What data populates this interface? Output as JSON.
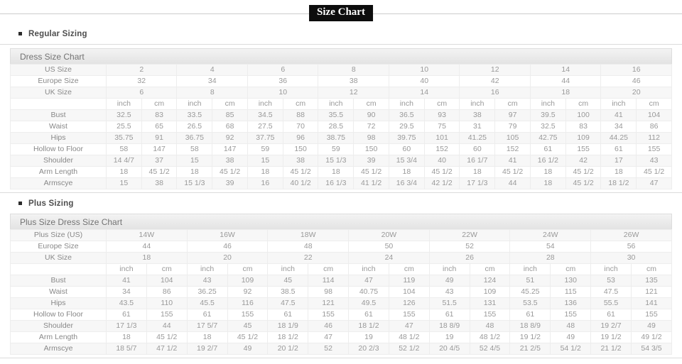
{
  "page": {
    "title": "Size Chart"
  },
  "colors": {
    "title_bg": "#0d0d0d",
    "title_text": "#ffffff",
    "header_bar_text": "#737373",
    "cell_text": "#999999",
    "heading_text": "#4d4d4d",
    "row_stripe": "#f7f7f7"
  },
  "sections": [
    {
      "heading": "Regular Sizing",
      "table": {
        "title": "Dress Size Chart",
        "unit_headers": [
          "inch",
          "cm"
        ],
        "size_rows": [
          {
            "label": "US Size",
            "values": [
              "2",
              "4",
              "6",
              "8",
              "10",
              "12",
              "14",
              "16"
            ]
          },
          {
            "label": "Europe Size",
            "values": [
              "32",
              "34",
              "36",
              "38",
              "40",
              "42",
              "44",
              "46"
            ]
          },
          {
            "label": "UK Size",
            "values": [
              "6",
              "8",
              "10",
              "12",
              "14",
              "16",
              "18",
              "20"
            ]
          }
        ],
        "measure_rows": [
          {
            "label": "Bust",
            "values": [
              "32.5",
              "83",
              "33.5",
              "85",
              "34.5",
              "88",
              "35.5",
              "90",
              "36.5",
              "93",
              "38",
              "97",
              "39.5",
              "100",
              "41",
              "104"
            ]
          },
          {
            "label": "Waist",
            "values": [
              "25.5",
              "65",
              "26.5",
              "68",
              "27.5",
              "70",
              "28.5",
              "72",
              "29.5",
              "75",
              "31",
              "79",
              "32.5",
              "83",
              "34",
              "86"
            ]
          },
          {
            "label": "Hips",
            "values": [
              "35.75",
              "91",
              "36.75",
              "92",
              "37.75",
              "96",
              "38.75",
              "98",
              "39.75",
              "101",
              "41.25",
              "105",
              "42.75",
              "109",
              "44.25",
              "112"
            ]
          },
          {
            "label": "Hollow to Floor",
            "values": [
              "58",
              "147",
              "58",
              "147",
              "59",
              "150",
              "59",
              "150",
              "60",
              "152",
              "60",
              "152",
              "61",
              "155",
              "61",
              "155"
            ]
          },
          {
            "label": "Shoulder",
            "values": [
              "14 4/7",
              "37",
              "15",
              "38",
              "15",
              "38",
              "15 1/3",
              "39",
              "15 3/4",
              "40",
              "16 1/7",
              "41",
              "16 1/2",
              "42",
              "17",
              "43"
            ]
          },
          {
            "label": "Arm Length",
            "values": [
              "18",
              "45 1/2",
              "18",
              "45 1/2",
              "18",
              "45 1/2",
              "18",
              "45 1/2",
              "18",
              "45 1/2",
              "18",
              "45 1/2",
              "18",
              "45 1/2",
              "18",
              "45 1/2"
            ]
          },
          {
            "label": "Armscye",
            "values": [
              "15",
              "38",
              "15 1/3",
              "39",
              "16",
              "40 1/2",
              "16 1/3",
              "41 1/2",
              "16 3/4",
              "42 1/2",
              "17 1/3",
              "44",
              "18",
              "45 1/2",
              "18 1/2",
              "47"
            ]
          }
        ]
      }
    },
    {
      "heading": "Plus Sizing",
      "table": {
        "title": "Plus Size Dress Size Chart",
        "unit_headers": [
          "inch",
          "cm"
        ],
        "size_rows": [
          {
            "label": "Plus Size (US)",
            "values": [
              "14W",
              "16W",
              "18W",
              "20W",
              "22W",
              "24W",
              "26W"
            ]
          },
          {
            "label": "Europe Size",
            "values": [
              "44",
              "46",
              "48",
              "50",
              "52",
              "54",
              "56"
            ]
          },
          {
            "label": "UK Size",
            "values": [
              "18",
              "20",
              "22",
              "24",
              "26",
              "28",
              "30"
            ]
          }
        ],
        "measure_rows": [
          {
            "label": "Bust",
            "values": [
              "41",
              "104",
              "43",
              "109",
              "45",
              "114",
              "47",
              "119",
              "49",
              "124",
              "51",
              "130",
              "53",
              "135"
            ]
          },
          {
            "label": "Waist",
            "values": [
              "34",
              "86",
              "36.25",
              "92",
              "38.5",
              "98",
              "40.75",
              "104",
              "43",
              "109",
              "45.25",
              "115",
              "47.5",
              "121"
            ]
          },
          {
            "label": "Hips",
            "values": [
              "43.5",
              "110",
              "45.5",
              "116",
              "47.5",
              "121",
              "49.5",
              "126",
              "51.5",
              "131",
              "53.5",
              "136",
              "55.5",
              "141"
            ]
          },
          {
            "label": "Hollow to Floor",
            "values": [
              "61",
              "155",
              "61",
              "155",
              "61",
              "155",
              "61",
              "155",
              "61",
              "155",
              "61",
              "155",
              "61",
              "155"
            ]
          },
          {
            "label": "Shoulder",
            "values": [
              "17 1/3",
              "44",
              "17 5/7",
              "45",
              "18 1/9",
              "46",
              "18 1/2",
              "47",
              "18 8/9",
              "48",
              "18 8/9",
              "48",
              "19 2/7",
              "49"
            ]
          },
          {
            "label": "Arm Length",
            "values": [
              "18",
              "45 1/2",
              "18",
              "45 1/2",
              "18 1/2",
              "47",
              "19",
              "48 1/2",
              "19",
              "48 1/2",
              "19 1/2",
              "49",
              "19 1/2",
              "49 1/2"
            ]
          },
          {
            "label": "Armscye",
            "values": [
              "18 5/7",
              "47 1/2",
              "19 2/7",
              "49",
              "20 1/2",
              "52",
              "20 2/3",
              "52 1/2",
              "20 4/5",
              "52 4/5",
              "21 2/5",
              "54 1/2",
              "21 1/2",
              "54 3/5"
            ]
          }
        ]
      }
    }
  ]
}
